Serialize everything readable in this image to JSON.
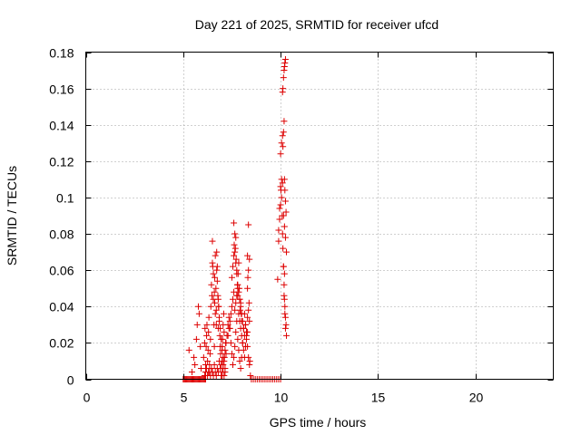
{
  "chart_data": {
    "type": "scatter",
    "title": "Day 221 of 2025, SRMTID for receiver ufcd",
    "xlabel": "GPS time / hours",
    "ylabel": "SRMTID / TECUs",
    "xlim": [
      0,
      24
    ],
    "ylim": [
      0,
      0.18
    ],
    "xticks": [
      0,
      5,
      10,
      15,
      20
    ],
    "xtick_labels": [
      "0",
      "5",
      "10",
      "15",
      "20"
    ],
    "yticks": [
      0,
      0.02,
      0.04,
      0.06,
      0.08,
      0.1,
      0.12,
      0.14,
      0.16,
      0.18
    ],
    "ytick_labels": [
      "0",
      "0.02",
      "0.04",
      "0.06",
      "0.08",
      "0.1",
      "0.12",
      "0.14",
      "0.16",
      "0.18"
    ],
    "grid": true,
    "marker": "+",
    "color": "#dd0000",
    "series": [
      {
        "name": "SRMTID",
        "x": [
          5.0,
          5.05,
          5.1,
          5.15,
          5.2,
          5.25,
          5.3,
          5.35,
          5.4,
          5.45,
          5.5,
          5.55,
          5.6,
          5.65,
          5.7,
          5.75,
          5.8,
          5.85,
          5.9,
          5.95,
          6.0,
          6.05,
          6.1,
          6.15,
          5.3,
          5.45,
          5.55,
          5.6,
          5.68,
          5.72,
          5.78,
          5.82,
          5.88,
          5.92,
          6.05,
          6.1,
          6.12,
          6.15,
          6.18,
          6.2,
          6.22,
          6.25,
          6.28,
          6.3,
          6.32,
          6.35,
          6.38,
          6.4,
          6.42,
          6.45,
          6.48,
          6.5,
          6.52,
          6.55,
          6.58,
          6.6,
          6.62,
          6.65,
          6.68,
          6.7,
          6.72,
          6.75,
          6.78,
          6.8,
          6.82,
          6.85,
          6.88,
          6.9,
          6.92,
          6.95,
          6.98,
          7.0,
          7.02,
          7.05,
          7.08,
          7.1,
          7.12,
          7.15,
          7.18,
          7.2,
          6.1,
          6.15,
          6.2,
          6.25,
          6.3,
          6.35,
          6.4,
          6.45,
          6.5,
          6.55,
          6.6,
          6.65,
          6.7,
          6.75,
          6.8,
          6.85,
          6.9,
          6.95,
          7.0,
          7.05,
          7.1,
          7.15,
          6.5,
          6.55,
          6.6,
          6.62,
          6.65,
          6.7,
          6.72,
          6.75,
          6.8,
          6.82,
          6.85,
          6.9,
          6.95,
          7.0,
          7.05,
          7.0,
          7.05,
          7.1,
          7.15,
          7.2,
          7.25,
          7.3,
          7.35,
          7.4,
          7.45,
          7.5,
          7.55,
          7.6,
          7.65,
          7.7,
          7.75,
          7.8,
          7.85,
          7.9,
          7.95,
          8.0,
          8.05,
          8.1,
          8.15,
          8.2,
          8.25,
          8.3,
          8.35,
          8.4,
          7.5,
          7.55,
          7.6,
          7.62,
          7.65,
          7.68,
          7.7,
          7.72,
          7.75,
          7.78,
          7.8,
          7.82,
          7.85,
          7.88,
          7.9,
          7.92,
          7.95,
          7.98,
          8.0,
          7.6,
          7.65,
          7.7,
          7.75,
          7.8,
          7.85,
          7.9,
          7.95,
          8.0,
          8.05,
          8.1,
          8.15,
          8.2,
          8.25,
          8.3,
          8.35,
          7.3,
          7.35,
          7.4,
          7.45,
          7.5,
          7.55,
          7.6,
          7.65,
          7.7,
          7.75,
          7.8,
          7.85,
          7.9,
          7.95,
          8.0,
          8.05,
          8.1,
          8.15,
          8.2,
          8.25,
          8.3,
          8.3,
          8.35,
          8.4,
          8.3,
          8.32,
          8.35,
          8.38,
          8.4,
          8.42,
          8.45,
          8.5,
          8.6,
          8.7,
          8.8,
          8.9,
          9.0,
          9.1,
          9.2,
          9.3,
          9.4,
          9.5,
          9.6,
          9.7,
          9.8,
          9.9,
          10.0,
          9.85,
          9.9,
          9.95,
          10.0,
          10.02,
          10.05,
          10.08,
          10.1,
          10.12,
          10.15,
          10.18,
          10.2,
          10.22,
          10.25,
          10.28,
          10.3,
          9.9,
          9.95,
          10.0,
          10.05,
          10.1,
          10.15,
          10.2,
          10.25,
          10.3,
          10.0,
          10.05,
          10.1,
          10.12,
          10.15,
          10.18,
          10.2,
          10.22,
          10.25,
          10.28,
          10.1,
          10.12,
          10.15,
          10.18,
          10.2,
          10.22,
          10.25,
          10.15,
          10.18,
          10.2,
          10.22,
          10.25
        ],
        "y": [
          0,
          0,
          0,
          0,
          0,
          0,
          0,
          0,
          0,
          0,
          0,
          0,
          0,
          0,
          0,
          0,
          0,
          0,
          0,
          0,
          0,
          0,
          0,
          0,
          0.016,
          0.004,
          0.012,
          0.008,
          0.022,
          0.03,
          0.04,
          0.036,
          0.018,
          0.006,
          0.012,
          0.02,
          0.028,
          0.008,
          0.018,
          0.024,
          0.03,
          0.01,
          0.016,
          0.026,
          0.034,
          0.004,
          0.014,
          0.022,
          0.04,
          0.052,
          0.046,
          0.076,
          0.062,
          0.044,
          0.03,
          0.018,
          0.056,
          0.068,
          0.05,
          0.038,
          0.07,
          0.062,
          0.046,
          0.028,
          0.04,
          0.032,
          0.024,
          0.018,
          0.014,
          0.008,
          0.01,
          0.016,
          0.022,
          0.03,
          0.036,
          0.026,
          0.012,
          0.006,
          0.02,
          0.014,
          0.002,
          0.004,
          0.006,
          0.002,
          0.004,
          0.008,
          0.002,
          0.006,
          0.004,
          0.002,
          0.008,
          0.004,
          0.002,
          0.006,
          0.004,
          0.01,
          0.006,
          0.002,
          0.004,
          0.008,
          0.002,
          0.004,
          0.064,
          0.058,
          0.048,
          0.042,
          0.036,
          0.03,
          0.06,
          0.054,
          0.044,
          0.04,
          0.034,
          0.028,
          0.022,
          0.018,
          0.012,
          0.002,
          0.006,
          0.01,
          0.016,
          0.02,
          0.024,
          0.03,
          0.034,
          0.028,
          0.02,
          0.014,
          0.008,
          0.012,
          0.018,
          0.026,
          0.032,
          0.022,
          0.016,
          0.01,
          0.006,
          0.012,
          0.02,
          0.028,
          0.036,
          0.03,
          0.024,
          0.018,
          0.012,
          0.008,
          0.056,
          0.062,
          0.068,
          0.074,
          0.08,
          0.072,
          0.078,
          0.066,
          0.06,
          0.052,
          0.046,
          0.058,
          0.064,
          0.05,
          0.044,
          0.038,
          0.042,
          0.036,
          0.032,
          0.086,
          0.07,
          0.064,
          0.058,
          0.052,
          0.048,
          0.044,
          0.04,
          0.036,
          0.032,
          0.028,
          0.024,
          0.03,
          0.026,
          0.034,
          0.038,
          0.024,
          0.028,
          0.032,
          0.036,
          0.04,
          0.044,
          0.048,
          0.038,
          0.042,
          0.046,
          0.05,
          0.036,
          0.032,
          0.028,
          0.024,
          0.02,
          0.016,
          0.012,
          0.018,
          0.022,
          0.026,
          0.068,
          0.085,
          0.066,
          0.05,
          0.056,
          0.06,
          0.042,
          0.032,
          0.01,
          0.002,
          0,
          0,
          0,
          0,
          0,
          0,
          0,
          0,
          0,
          0,
          0,
          0,
          0,
          0,
          0,
          0,
          0.055,
          0.076,
          0.088,
          0.096,
          0.104,
          0.11,
          0.09,
          0.08,
          0.072,
          0.062,
          0.052,
          0.044,
          0.036,
          0.028,
          0.03,
          0.024,
          0.082,
          0.094,
          0.106,
          0.1,
          0.108,
          0.09,
          0.084,
          0.078,
          0.07,
          0.124,
          0.13,
          0.134,
          0.128,
          0.136,
          0.142,
          0.11,
          0.104,
          0.098,
          0.092,
          0.158,
          0.16,
          0.166,
          0.17,
          0.172,
          0.174,
          0.176,
          0.062,
          0.046,
          0.058,
          0.04,
          0.034
        ]
      }
    ]
  }
}
